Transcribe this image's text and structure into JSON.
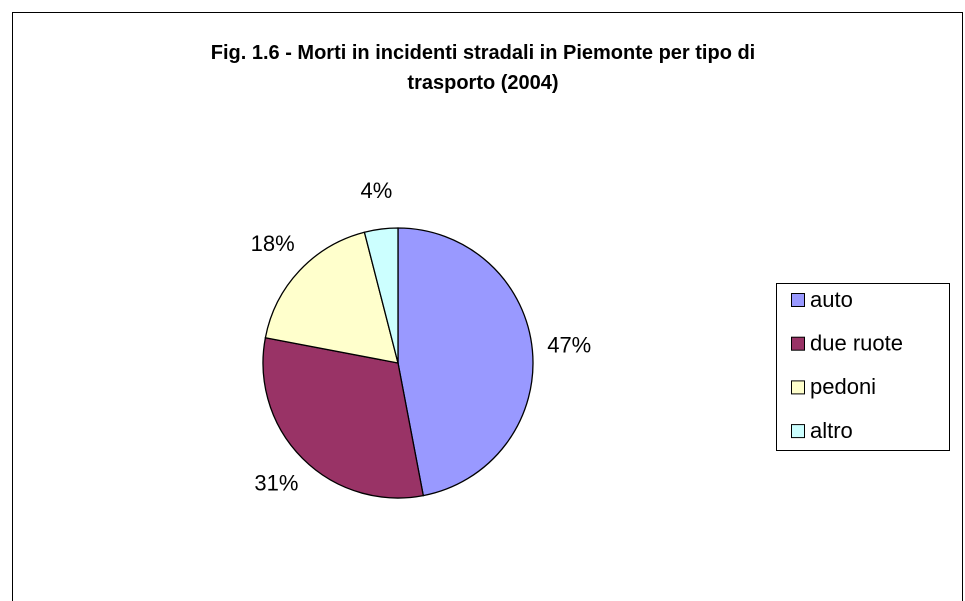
{
  "chart_data": {
    "type": "pie",
    "title": "Fig. 1.6 - Morti in incidenti stradali in Piemonte per tipo di trasporto (2004)",
    "categories": [
      "auto",
      "due ruote",
      "pedoni",
      "altro"
    ],
    "values": [
      47,
      31,
      18,
      4
    ],
    "value_labels": [
      "47%",
      "31%",
      "18%",
      "4%"
    ],
    "colors": [
      "#9999ff",
      "#993366",
      "#ffffcc",
      "#ccffff"
    ],
    "legend": "right"
  }
}
